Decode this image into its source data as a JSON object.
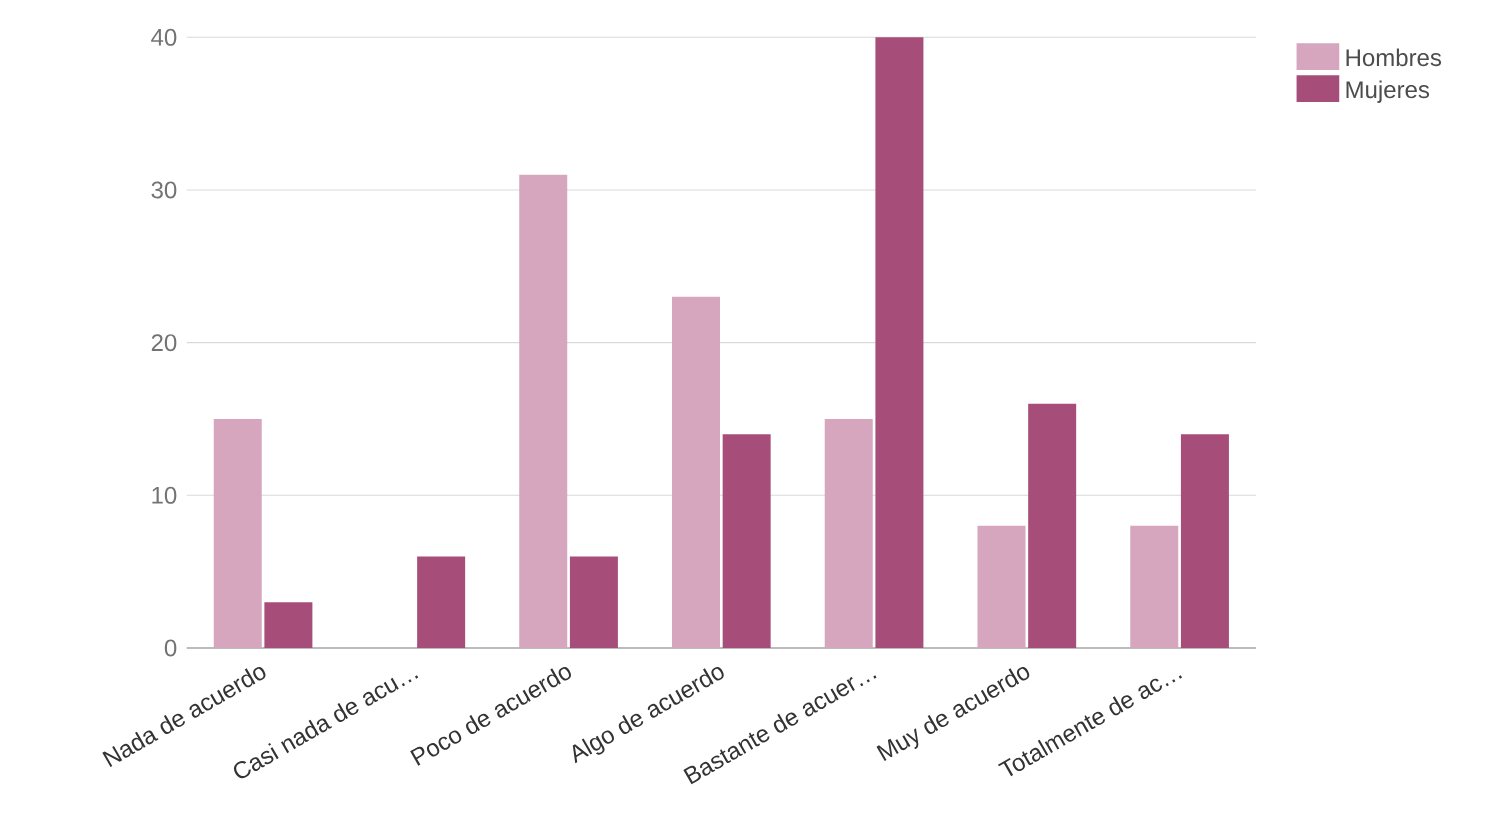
{
  "chart_data": {
    "type": "bar",
    "categories": [
      "Nada de acuerdo",
      "Casi nada de acu…",
      "Poco de acuerdo",
      "Algo de acuerdo",
      "Bastante de acuer…",
      "Muy de acuerdo",
      "Totalmente de ac…"
    ],
    "series": [
      {
        "name": "Hombres",
        "color": "#d5a6bd",
        "values": [
          15,
          0,
          31,
          23,
          15,
          8,
          8
        ]
      },
      {
        "name": "Mujeres",
        "color": "#a64d79",
        "values": [
          3,
          6,
          6,
          14,
          40,
          16,
          14
        ]
      }
    ],
    "ylim": [
      0,
      40
    ],
    "yticks": [
      0,
      10,
      20,
      30,
      40
    ],
    "grid": "y",
    "legend": "top right"
  }
}
